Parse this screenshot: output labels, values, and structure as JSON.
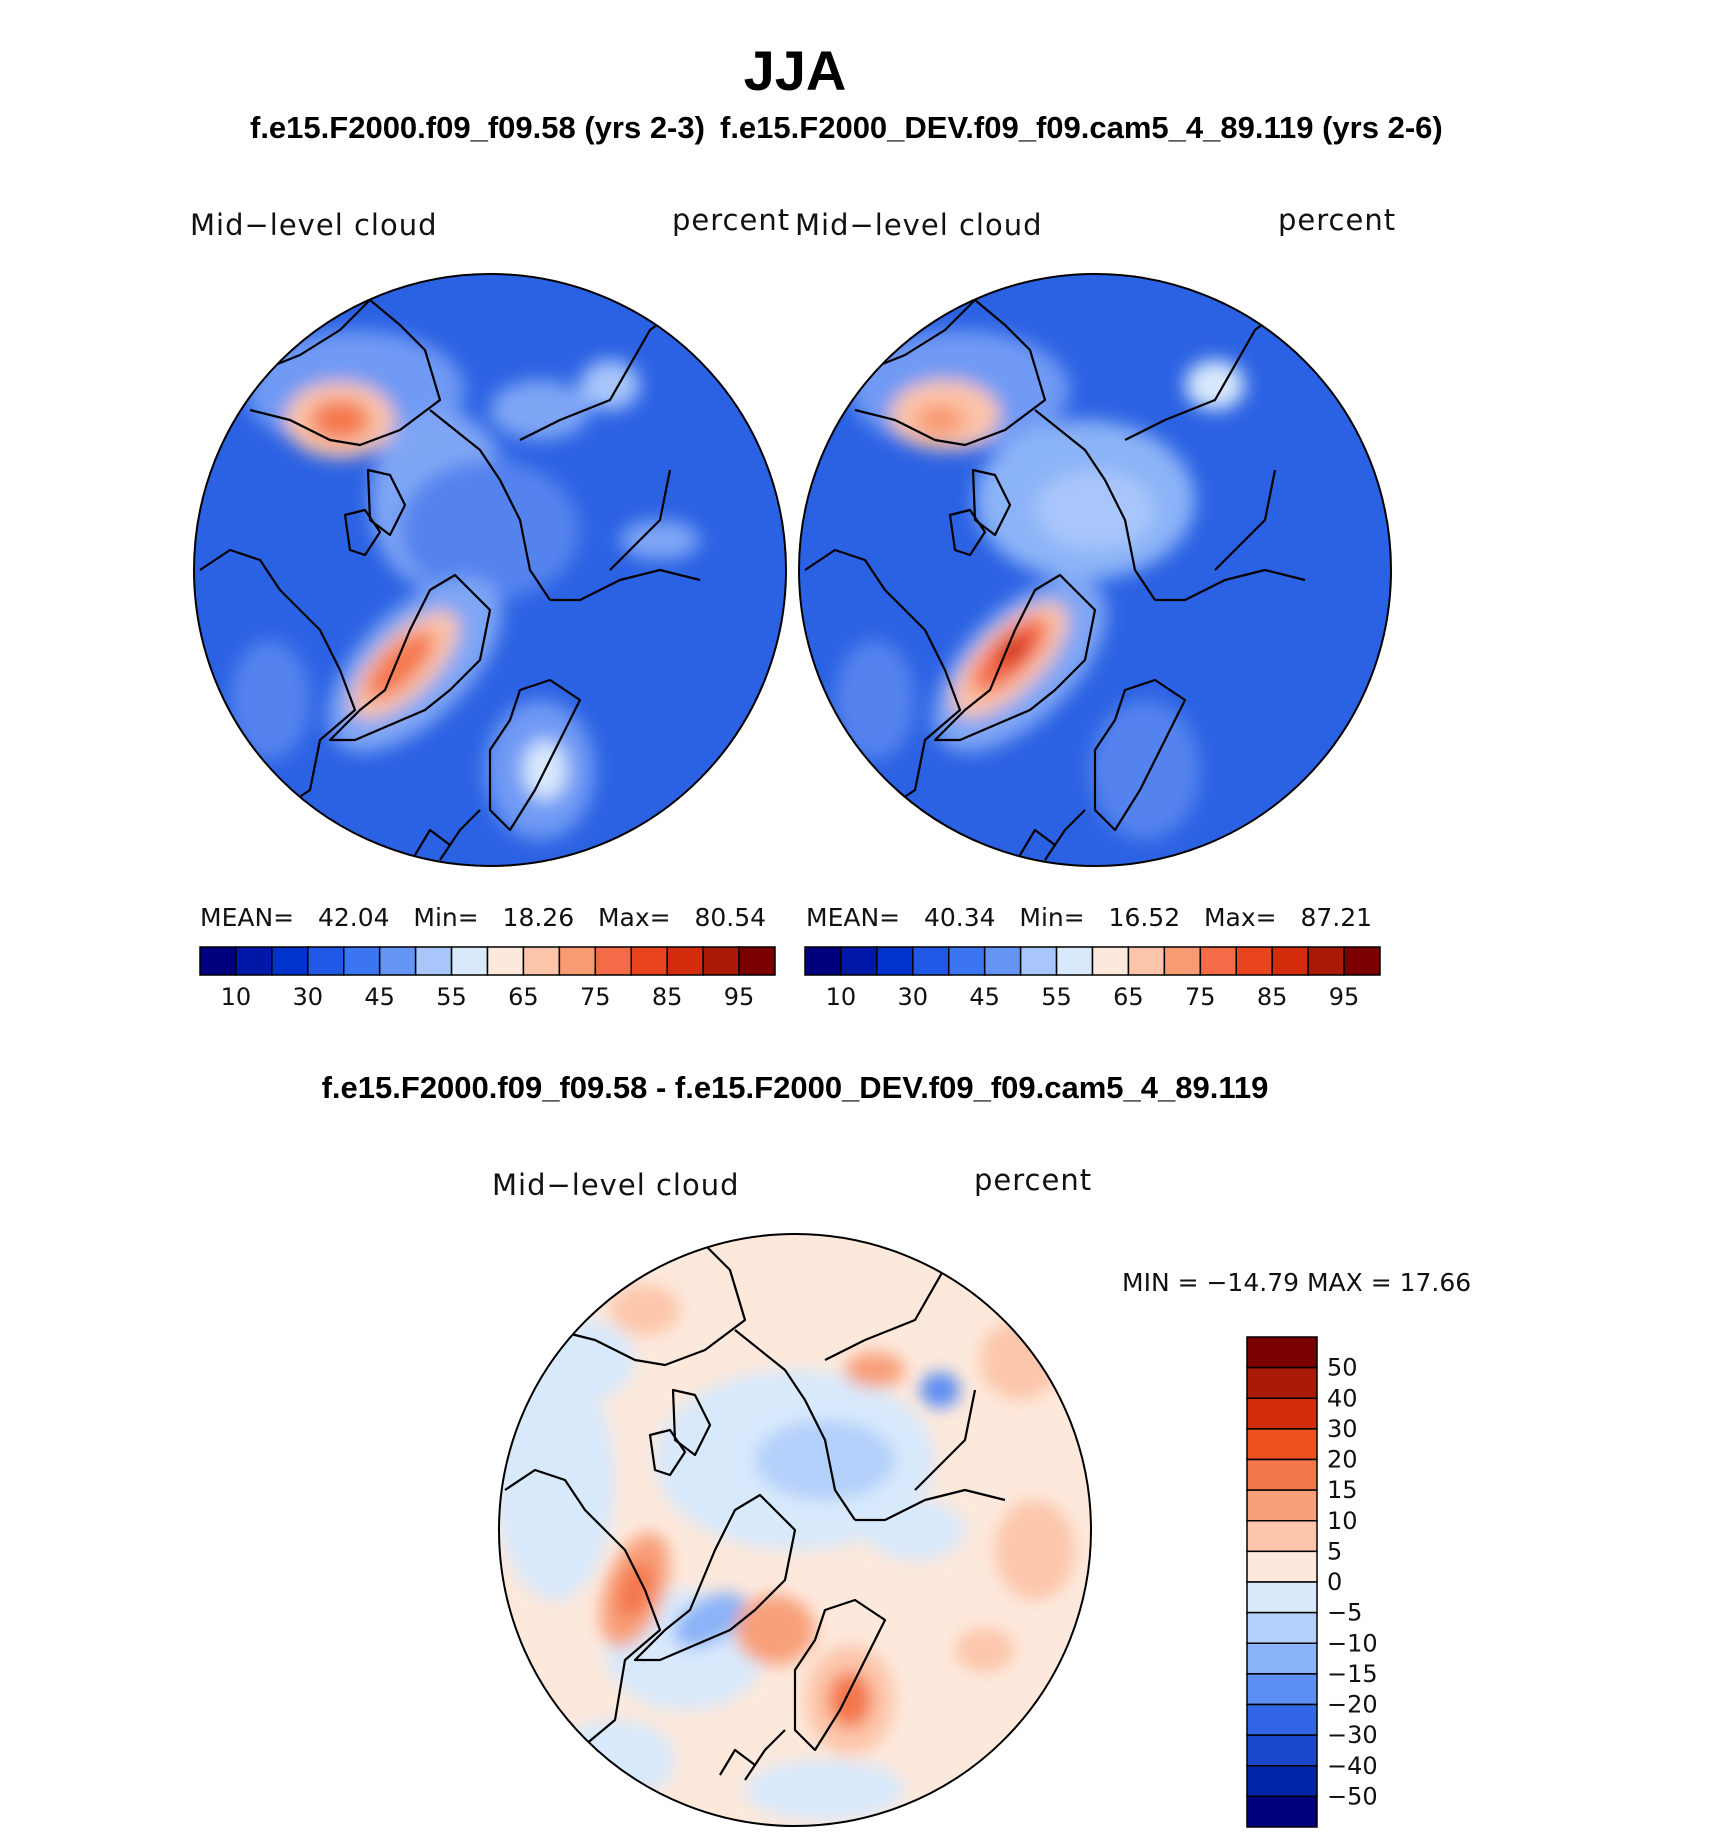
{
  "title": "JJA",
  "case_titles": [
    "f.e15.F2000.f09_f09.58 (yrs 2-3)",
    "f.e15.F2000_DEV.f09_f09.cam5_4_89.119 (yrs 2-6)"
  ],
  "difference_title": "f.e15.F2000.f09_f09.58 - f.e15.F2000_DEV.f09_f09.cam5_4_89.119",
  "chart_data": [
    {
      "type": "heatmap",
      "projection": "north polar stereographic",
      "left_label": "Mid−level cloud",
      "right_label": "percent",
      "stats": {
        "mean_label": "MEAN=",
        "mean": "42.04",
        "min_label": "Min=",
        "min": "18.26",
        "max_label": "Max=",
        "max": "80.54"
      },
      "colorbar": {
        "orientation": "horizontal",
        "tick_labels": [
          "10",
          "30",
          "45",
          "55",
          "65",
          "75",
          "85",
          "95"
        ],
        "colors": [
          "#00007f",
          "#0018a8",
          "#0033cc",
          "#1f57e6",
          "#3b75f0",
          "#6495f5",
          "#a8c6fa",
          "#d8e9fc",
          "#fde9dc",
          "#fcc4a8",
          "#f89a72",
          "#f46b48",
          "#e8451e",
          "#d22c0c",
          "#aa1a06",
          "#7a0000"
        ]
      }
    },
    {
      "type": "heatmap",
      "projection": "north polar stereographic",
      "left_label": "Mid−level cloud",
      "right_label": "percent",
      "stats": {
        "mean_label": "MEAN=",
        "mean": "40.34",
        "min_label": "Min=",
        "min": "16.52",
        "max_label": "Max=",
        "max": "87.21"
      },
      "colorbar": {
        "orientation": "horizontal",
        "tick_labels": [
          "10",
          "30",
          "45",
          "55",
          "65",
          "75",
          "85",
          "95"
        ],
        "colors": [
          "#00007f",
          "#0018a8",
          "#0033cc",
          "#1f57e6",
          "#3b75f0",
          "#6495f5",
          "#a8c6fa",
          "#d8e9fc",
          "#fde9dc",
          "#fcc4a8",
          "#f89a72",
          "#f46b48",
          "#e8451e",
          "#d22c0c",
          "#aa1a06",
          "#7a0000"
        ]
      }
    },
    {
      "type": "heatmap",
      "projection": "north polar stereographic",
      "left_label": "Mid−level cloud",
      "right_label": "percent",
      "stats": {
        "text": "MIN = −14.79 MAX =   17.66"
      },
      "colorbar": {
        "orientation": "vertical",
        "tick_labels": [
          "50",
          "40",
          "30",
          "20",
          "15",
          "10",
          "5",
          "0",
          "−5",
          "−10",
          "−15",
          "−20",
          "−30",
          "−40",
          "−50"
        ],
        "colors": [
          "#7a0000",
          "#aa1a06",
          "#d22c0c",
          "#f05020",
          "#f4774c",
          "#f8a07a",
          "#fcc6aa",
          "#fde9dc",
          "#d8e9fc",
          "#b3d0fb",
          "#8bb3f7",
          "#5d8ff2",
          "#3366e6",
          "#1a46cc",
          "#0026a8",
          "#00007f"
        ]
      }
    }
  ],
  "colors": {
    "base_blue": "#2b62e3",
    "light_blue": "#a8c6fa",
    "warm": "#f46b48",
    "diff_base": "#fde9dc",
    "diff_cool": "#d8e9fc"
  }
}
